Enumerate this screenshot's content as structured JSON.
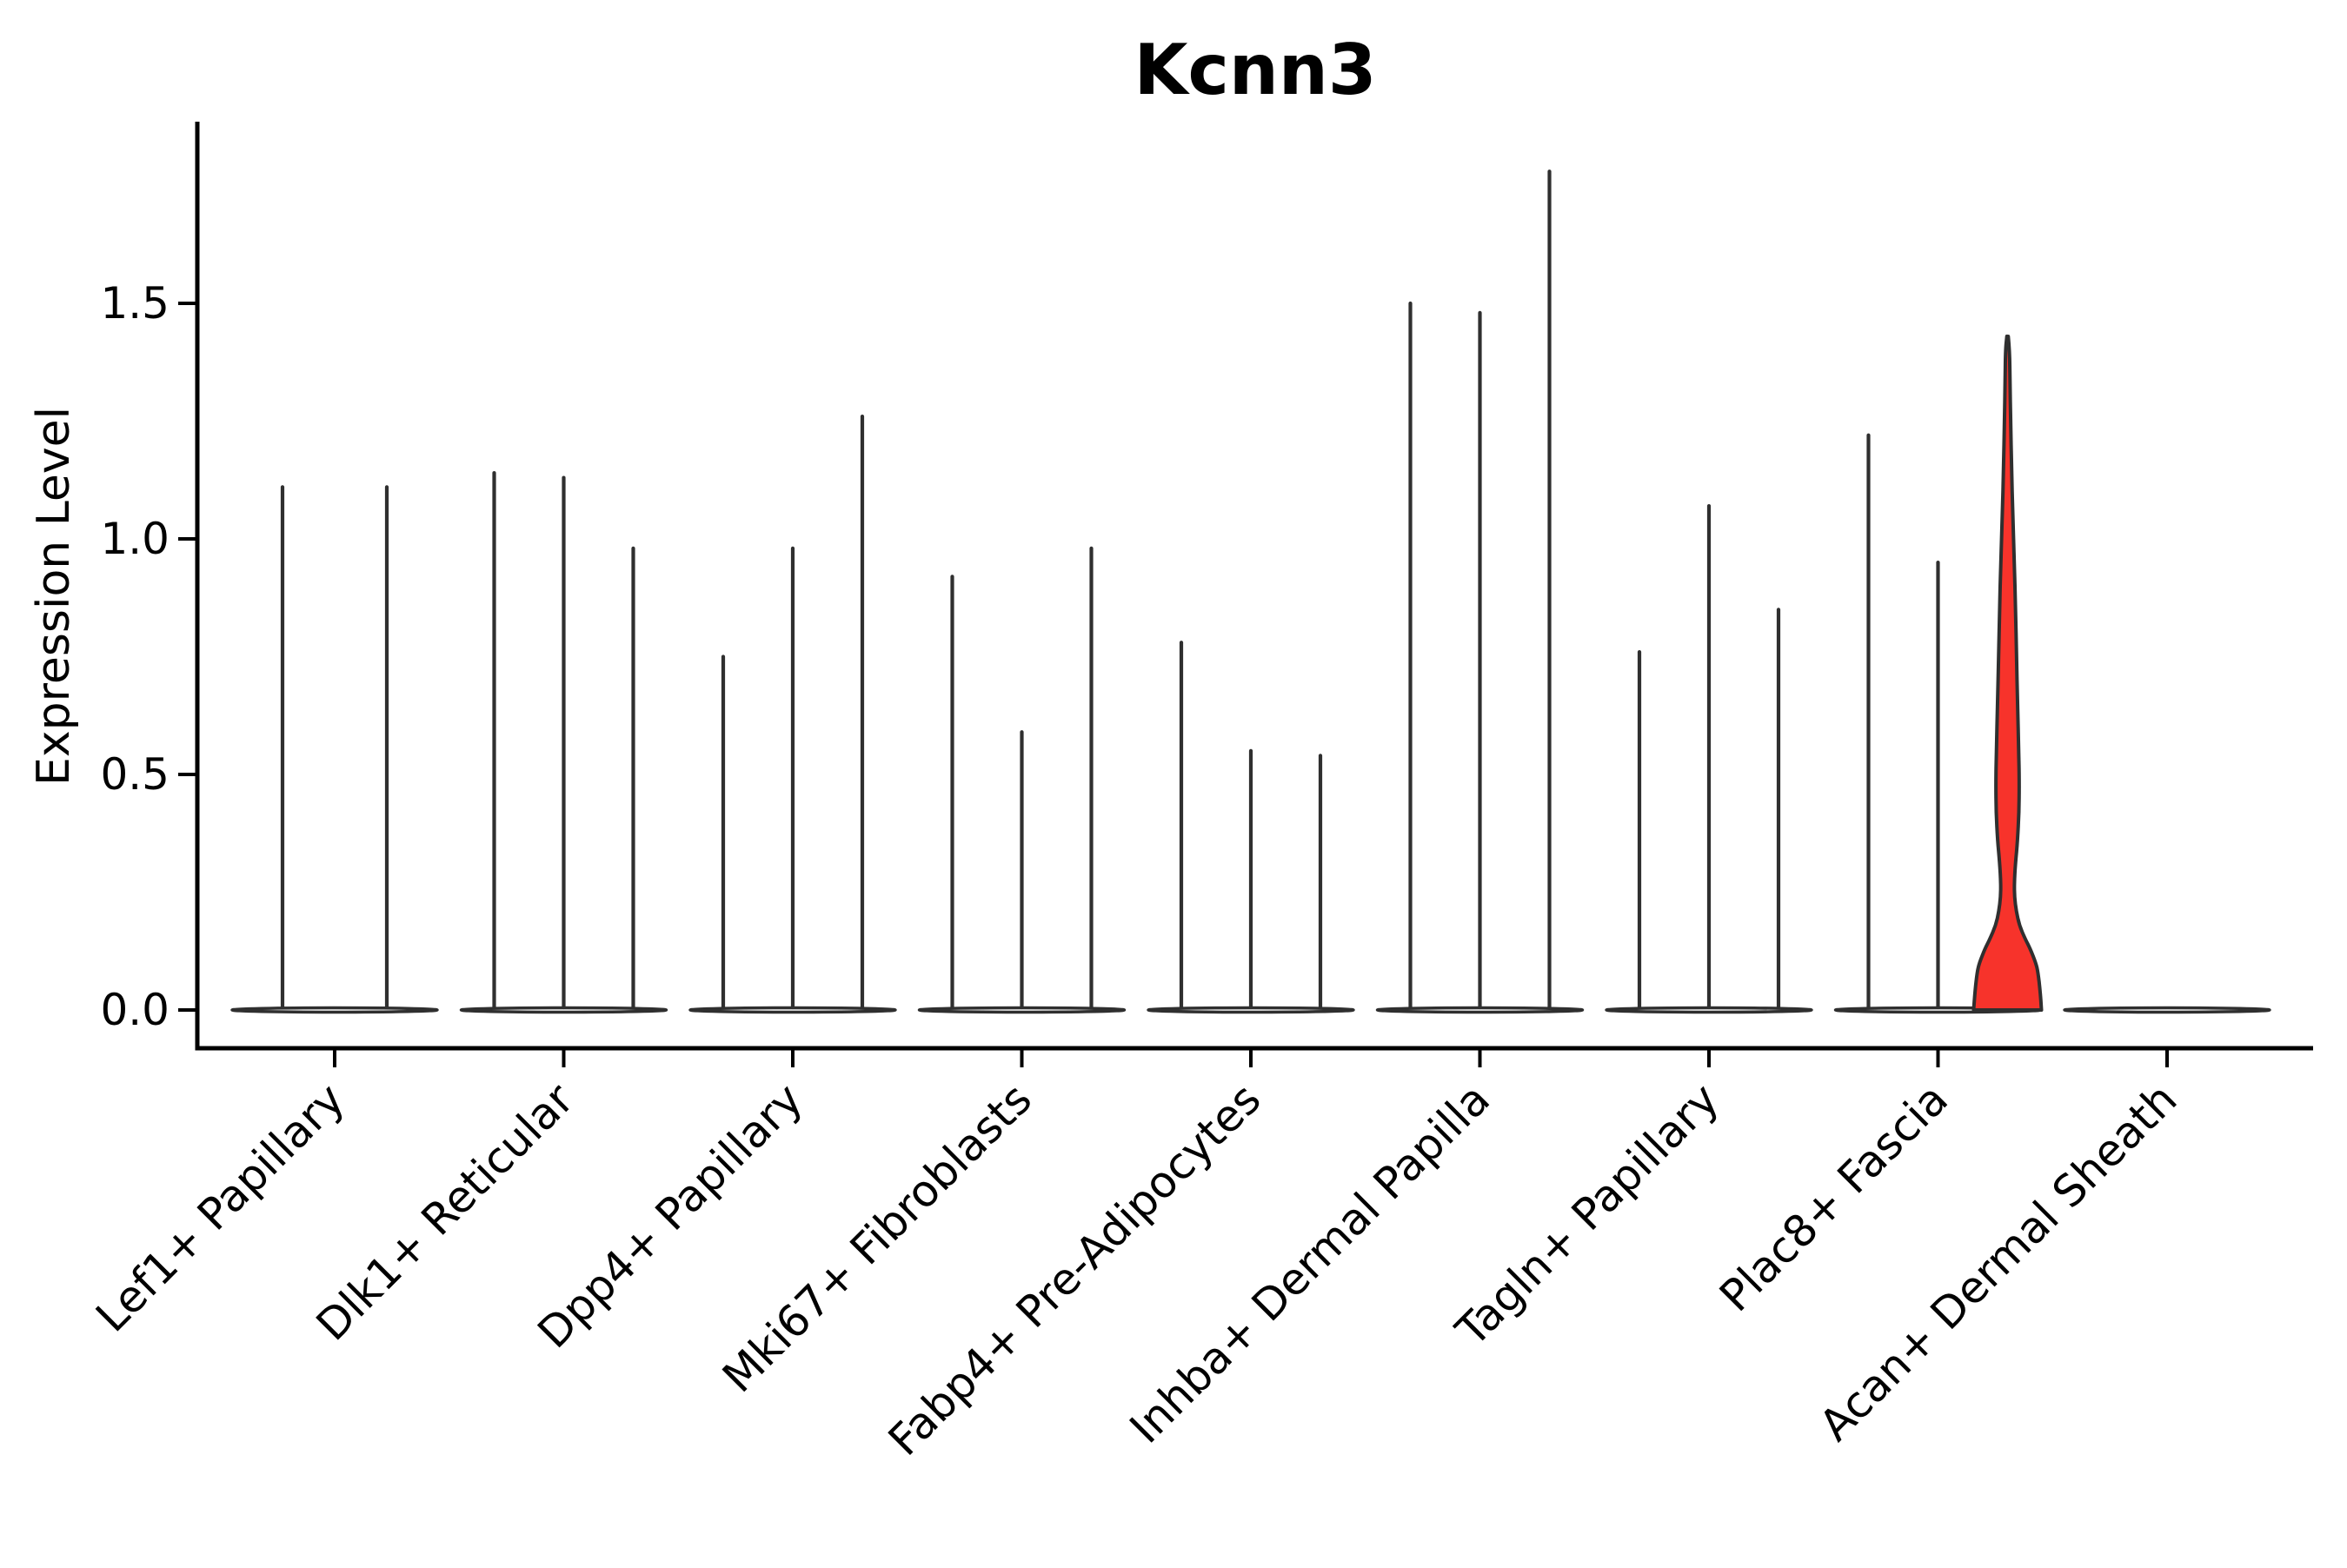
{
  "chart_data": {
    "type": "violin",
    "title": "Kcnn3",
    "ylabel": "Expression Level",
    "xlabel": "",
    "yticks": [
      0.0,
      0.5,
      1.0,
      1.5
    ],
    "ytick_labels": [
      "0.0",
      "0.5",
      "1.0",
      "1.5"
    ],
    "ylim": [
      -0.08,
      1.89
    ],
    "grid": false,
    "legend": false,
    "categories": [
      "Lef1+ Papillary",
      "Dlk1+ Reticular",
      "Dpp4+ Papillary",
      "Mki67+ Fibroblasts",
      "Fabp4+ Pre-Adipocytes",
      "Inhba+ Dermal Papilla",
      "Tagln+ Papillary",
      "Plac8+ Fascia",
      "Acan+ Dermal Sheath"
    ],
    "groups": [
      {
        "category": "Lef1+ Papillary",
        "violins": [
          {
            "max": 1.11
          },
          {
            "max": 1.11
          }
        ]
      },
      {
        "category": "Dlk1+ Reticular",
        "violins": [
          {
            "max": 1.14
          },
          {
            "max": 1.13
          },
          {
            "max": 0.98
          }
        ]
      },
      {
        "category": "Dpp4+ Papillary",
        "violins": [
          {
            "max": 0.75
          },
          {
            "max": 0.98
          },
          {
            "max": 1.26
          }
        ]
      },
      {
        "category": "Mki67+ Fibroblasts",
        "violins": [
          {
            "max": 0.92
          },
          {
            "max": 0.59
          },
          {
            "max": 0.98
          }
        ]
      },
      {
        "category": "Fabp4+ Pre-Adipocytes",
        "violins": [
          {
            "max": 0.78
          },
          {
            "max": 0.55
          },
          {
            "max": 0.54
          }
        ]
      },
      {
        "category": "Inhba+ Dermal Papilla",
        "violins": [
          {
            "max": 1.5
          },
          {
            "max": 1.48
          },
          {
            "max": 1.78
          }
        ]
      },
      {
        "category": "Tagln+ Papillary",
        "violins": [
          {
            "max": 0.76
          },
          {
            "max": 1.07
          },
          {
            "max": 0.85
          }
        ]
      },
      {
        "category": "Plac8+ Fascia",
        "violins": [
          {
            "max": 1.22
          },
          {
            "max": 0.95
          },
          {
            "max": 1.43,
            "highlight": true
          }
        ]
      },
      {
        "category": "Acan+ Dermal Sheath",
        "violins": [
          {
            "max": 0.0
          }
        ]
      }
    ],
    "highlight_profile": [
      [
        0.0,
        39.0
      ],
      [
        0.04,
        37.5
      ],
      [
        0.08,
        35.0
      ],
      [
        0.1,
        32.5
      ],
      [
        0.13,
        26.0
      ],
      [
        0.15,
        20.5
      ],
      [
        0.18,
        13.5
      ],
      [
        0.21,
        10.0
      ],
      [
        0.24,
        8.0
      ],
      [
        0.27,
        7.8
      ],
      [
        0.31,
        9.0
      ],
      [
        0.36,
        11.5
      ],
      [
        0.42,
        13.2
      ],
      [
        0.48,
        13.5
      ],
      [
        0.55,
        12.8
      ],
      [
        0.65,
        11.5
      ],
      [
        0.75,
        10.3
      ],
      [
        0.85,
        9.2
      ],
      [
        0.95,
        7.8
      ],
      [
        1.05,
        6.0
      ],
      [
        1.15,
        4.6
      ],
      [
        1.25,
        3.5
      ],
      [
        1.33,
        2.8
      ],
      [
        1.4,
        2.4
      ],
      [
        1.43,
        0.8
      ]
    ],
    "colors": {
      "highlight_fill": "#f7332b",
      "violin_outline": "#2f2f2f",
      "axis": "#000000",
      "background": "#ffffff"
    }
  }
}
